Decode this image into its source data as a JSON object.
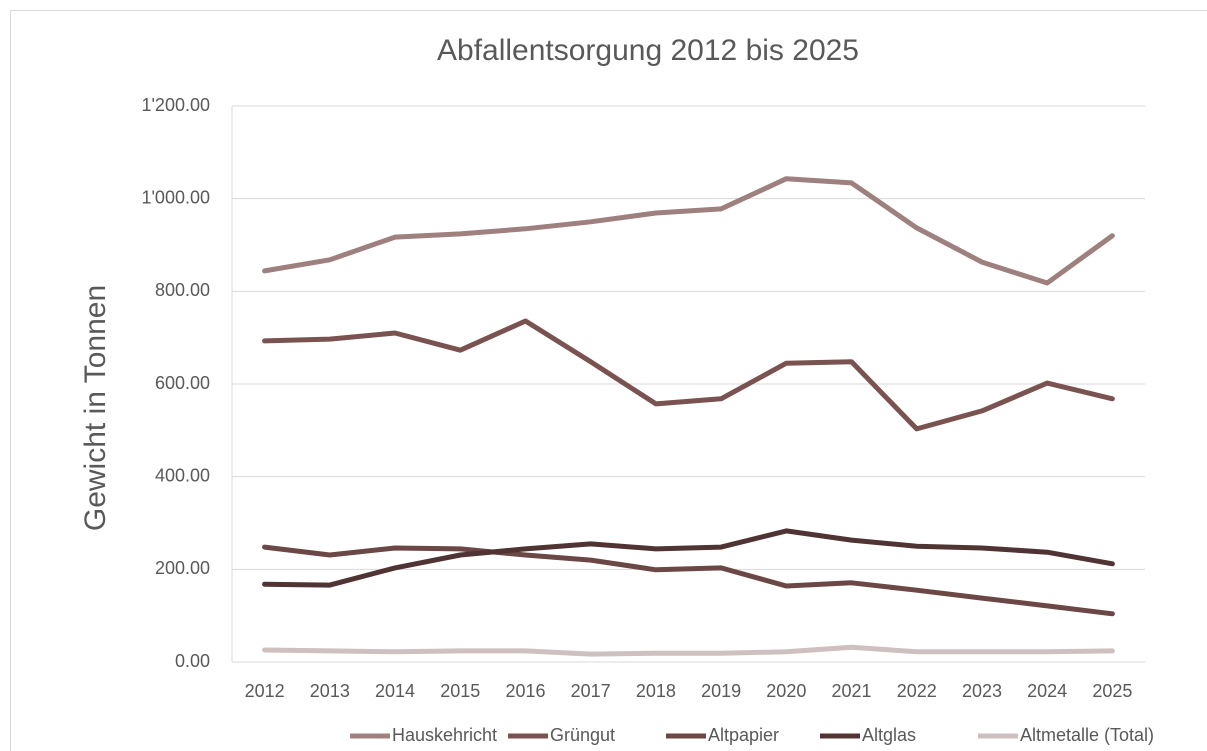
{
  "chart_data": {
    "type": "line",
    "title": "Abfallentsorgung 2012 bis 2025",
    "y_label": "Gewicht in Tonnen",
    "categories": [
      "2012",
      "2013",
      "2014",
      "2015",
      "2016",
      "2017",
      "2018",
      "2019",
      "2020",
      "2021",
      "2022",
      "2023",
      "2024",
      "2025"
    ],
    "series": [
      {
        "name": "Hauskehricht",
        "color": "#9e807e",
        "values": [
          844,
          868,
          917,
          924,
          935,
          950,
          969,
          978,
          1043,
          1034,
          937,
          863,
          818,
          920
        ]
      },
      {
        "name": "Grüngut",
        "color": "#7a5250",
        "values": [
          693,
          697,
          710,
          673,
          736,
          648,
          557,
          568,
          645,
          648,
          503,
          542,
          602,
          568
        ]
      },
      {
        "name": "Altpapier",
        "color": "#6b4745",
        "values": [
          248,
          231,
          246,
          244,
          231,
          220,
          199,
          203,
          164,
          171,
          155,
          138,
          121,
          104
        ]
      },
      {
        "name": "Altglas",
        "color": "#4f3433",
        "values": [
          168,
          166,
          203,
          231,
          244,
          255,
          244,
          248,
          283,
          263,
          250,
          246,
          237,
          212
        ]
      },
      {
        "name": "Altmetalle (Total)",
        "color": "#cdc0bf",
        "values": [
          26,
          24,
          22,
          24,
          24,
          17,
          19,
          19,
          22,
          32,
          22,
          22,
          22,
          24
        ]
      }
    ],
    "ylim": [
      0,
      1200
    ],
    "yticks": [
      {
        "value": 0,
        "label": "0.00"
      },
      {
        "value": 200,
        "label": "200.00"
      },
      {
        "value": 400,
        "label": "400.00"
      },
      {
        "value": 600,
        "label": "600.00"
      },
      {
        "value": 800,
        "label": "800.00"
      },
      {
        "value": 1000,
        "label": "1'000.00"
      },
      {
        "value": 1200,
        "label": "1'200.00"
      }
    ],
    "grid": true,
    "legend": "bottom"
  }
}
